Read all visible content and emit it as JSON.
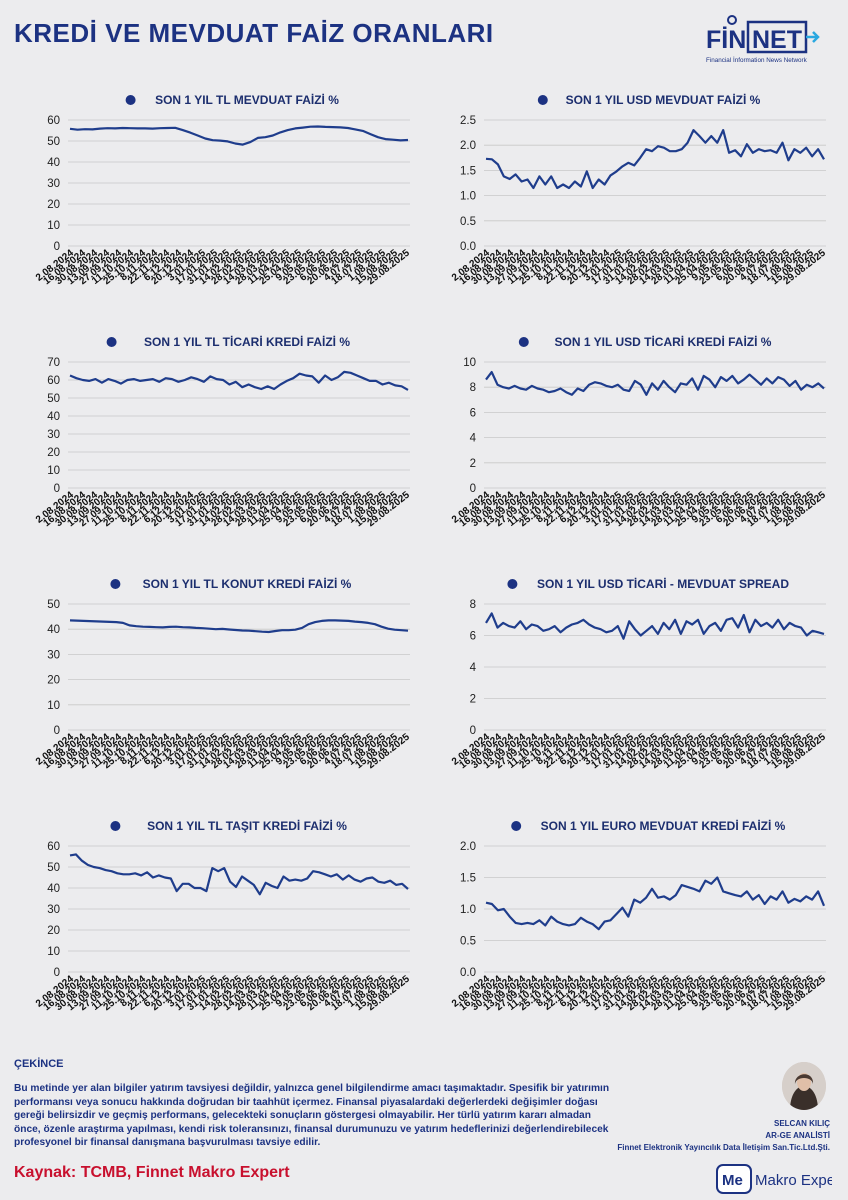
{
  "page": {
    "title": "KREDİ VE MEVDUAT FAİZ ORANLARI"
  },
  "logo": {
    "name": "FİNNET",
    "fin": "FİN",
    "net": "NET",
    "tagline": "Financial İnformation News Network"
  },
  "disclaimer": {
    "title": "ÇEKİNCE",
    "body": "Bu metinde yer alan bilgiler yatırım tavsiyesi değildir, yalnızca genel bilgilendirme amacı taşımaktadır. Spesifik bir yatırımın performansı veya sonucu hakkında doğrudan bir taahhüt içermez. Finansal piyasalardaki değerlerdeki değişimler doğası gereği belirsizdir ve geçmiş performans, gelecekteki sonuçların göstergesi olmayabilir. Her türlü yatırım kararı almadan önce, özenle araştırma yapılması, kendi risk toleransınızı, finansal durumunuzu ve yatırım hedeflerinizi değerlendirebilecek profesyonel bir finansal danışmana başvurulması tavsiye edilir."
  },
  "source": "Kaynak: TCMB, Finnet Makro Expert",
  "author": {
    "name": "SELCAN KILIÇ",
    "role": "AR-GE ANALİSTİ",
    "company": "Finnet Elektronik Yayıncılık Data İletişim San.Tic.Ltd.Şti."
  },
  "brand": {
    "me": "Me",
    "name": "Makro Expert"
  },
  "colors": {
    "navy": "#1c3282",
    "line": "#1f3d8c",
    "red": "#c8102e",
    "grid": "#c8c8c8"
  },
  "x_labels": [
    "2.08.2024",
    "16.08.2024",
    "30.08.2024",
    "13.09.2024",
    "27.09.2024",
    "11.10.2024",
    "25.10.2024",
    "8.11.2024",
    "22.11.2024",
    "6.12.2024",
    "20.12.2024",
    "3.01.2025",
    "17.01.2025",
    "31.01.2025",
    "14.02.2025",
    "28.02.2025",
    "14.03.2025",
    "28.03.2025",
    "11.04.2025",
    "25.04.2025",
    "9.05.2025",
    "23.05.2025",
    "6.06.2025",
    "20.06.2025",
    "4.07.2025",
    "18.07.2025",
    "1.08.2025",
    "15.08.2025",
    "29.08.2025"
  ],
  "chart_data": [
    {
      "type": "line",
      "title": "SON 1 YIL TL MEVDUAT FAİZİ %",
      "ylim": [
        0,
        60
      ],
      "yticks": [
        "0",
        "10",
        "20",
        "30",
        "40",
        "50",
        "60"
      ],
      "values": [
        55.8,
        55.4,
        55.6,
        55.5,
        55.9,
        56.1,
        56.0,
        56.2,
        56.1,
        56.0,
        56.0,
        55.9,
        56.1,
        56.2,
        56.3,
        55.2,
        54.0,
        52.6,
        51.2,
        50.4,
        50.2,
        49.8,
        48.8,
        48.3,
        49.5,
        51.5,
        51.8,
        52.6,
        54.1,
        55.2,
        56.0,
        56.4,
        56.8,
        56.9,
        56.7,
        56.6,
        56.5,
        56.2,
        55.5,
        54.8,
        53.3,
        51.8,
        50.9,
        50.6,
        50.3,
        50.5
      ]
    },
    {
      "type": "line",
      "title": "SON 1 YIL USD MEVDUAT FAİZİ %",
      "ylim": [
        0,
        2.5
      ],
      "yticks": [
        "0.0",
        "0.5",
        "1.0",
        "1.5",
        "2.0",
        "2.5"
      ],
      "values": [
        1.73,
        1.72,
        1.62,
        1.38,
        1.33,
        1.42,
        1.28,
        1.32,
        1.15,
        1.38,
        1.22,
        1.38,
        1.15,
        1.22,
        1.15,
        1.28,
        1.18,
        1.48,
        1.15,
        1.32,
        1.22,
        1.4,
        1.48,
        1.58,
        1.65,
        1.6,
        1.75,
        1.92,
        1.88,
        1.98,
        1.95,
        1.88,
        1.88,
        1.92,
        2.05,
        2.3,
        2.18,
        2.05,
        2.18,
        2.05,
        2.3,
        1.85,
        1.9,
        1.78,
        2.02,
        1.85,
        1.92,
        1.88,
        1.9,
        1.85,
        2.05,
        1.7,
        1.92,
        1.85,
        1.95,
        1.78,
        1.92,
        1.72
      ]
    },
    {
      "type": "line",
      "title": "SON 1 YIL TL TİCARİ KREDİ FAİZİ %",
      "ylim": [
        0,
        70
      ],
      "yticks": [
        "0",
        "10",
        "20",
        "30",
        "40",
        "50",
        "60",
        "70"
      ],
      "values": [
        62.5,
        61.0,
        60.0,
        59.5,
        60.5,
        58.5,
        60.5,
        59.5,
        58.0,
        60.0,
        60.5,
        59.5,
        60.0,
        60.5,
        59.0,
        61.0,
        60.5,
        59.0,
        60.0,
        61.5,
        60.5,
        59.0,
        62.0,
        60.5,
        60.0,
        57.5,
        59.0,
        56.0,
        57.5,
        56.0,
        55.0,
        56.5,
        55.0,
        57.5,
        59.5,
        61.0,
        63.5,
        62.5,
        62.0,
        58.5,
        62.5,
        60.0,
        61.5,
        64.5,
        64.0,
        62.5,
        61.0,
        59.5,
        59.5,
        57.5,
        58.5,
        57.0,
        56.5,
        54.5
      ]
    },
    {
      "type": "line",
      "title": "SON 1 YIL USD TİCARİ KREDİ FAİZİ %",
      "ylim": [
        0,
        10
      ],
      "yticks": [
        "0",
        "2",
        "4",
        "6",
        "8",
        "10"
      ],
      "values": [
        8.6,
        9.2,
        8.2,
        8.0,
        7.9,
        8.1,
        7.9,
        7.8,
        8.1,
        7.9,
        7.8,
        7.6,
        7.7,
        7.9,
        7.6,
        7.4,
        7.9,
        7.7,
        8.2,
        8.4,
        8.3,
        8.1,
        8.0,
        8.2,
        7.8,
        7.7,
        8.5,
        8.2,
        7.4,
        8.3,
        7.8,
        8.5,
        8.0,
        7.6,
        8.3,
        8.2,
        8.7,
        7.8,
        8.9,
        8.6,
        8.0,
        8.8,
        8.5,
        8.9,
        8.3,
        8.6,
        9.0,
        8.6,
        8.2,
        8.7,
        8.3,
        8.8,
        8.6,
        8.1,
        8.5,
        7.8,
        8.2,
        8.0,
        8.3,
        7.9
      ]
    },
    {
      "type": "line",
      "title": "SON 1 YIL TL KONUT KREDİ FAİZİ %",
      "ylim": [
        0,
        50
      ],
      "yticks": [
        "0",
        "10",
        "20",
        "30",
        "40",
        "50"
      ],
      "values": [
        43.5,
        43.4,
        43.3,
        43.2,
        43.1,
        43.0,
        42.9,
        42.8,
        42.5,
        41.5,
        41.2,
        41.0,
        40.9,
        40.8,
        40.7,
        40.9,
        41.0,
        40.8,
        40.7,
        40.5,
        40.4,
        40.2,
        40.0,
        40.1,
        39.9,
        39.7,
        39.5,
        39.4,
        39.2,
        39.0,
        38.9,
        39.3,
        39.6,
        39.6,
        39.8,
        40.5,
        42.0,
        42.8,
        43.3,
        43.5,
        43.5,
        43.4,
        43.3,
        43.0,
        42.8,
        42.5,
        42.0,
        41.0,
        40.2,
        39.8,
        39.6,
        39.4
      ]
    },
    {
      "type": "line",
      "title": "SON 1 YIL USD TİCARİ - MEVDUAT SPREAD",
      "ylim": [
        0,
        8
      ],
      "yticks": [
        "0",
        "2",
        "4",
        "6",
        "8"
      ],
      "values": [
        6.8,
        7.4,
        6.5,
        6.8,
        6.6,
        6.5,
        6.9,
        6.4,
        6.7,
        6.6,
        6.3,
        6.4,
        6.6,
        6.2,
        6.5,
        6.7,
        6.8,
        7.0,
        6.7,
        6.5,
        6.4,
        6.2,
        6.3,
        6.6,
        5.8,
        6.9,
        6.4,
        6.0,
        6.3,
        6.6,
        6.1,
        6.8,
        6.4,
        7.0,
        6.1,
        6.9,
        6.7,
        7.0,
        6.1,
        6.6,
        6.8,
        6.3,
        7.0,
        7.1,
        6.5,
        7.3,
        6.2,
        7.0,
        6.6,
        6.8,
        6.5,
        7.0,
        6.4,
        6.8,
        6.6,
        6.5,
        6.0,
        6.3,
        6.2,
        6.1
      ]
    },
    {
      "type": "line",
      "title": "SON 1 YIL TL TAŞIT KREDİ FAİZİ %",
      "ylim": [
        0,
        60
      ],
      "yticks": [
        "0",
        "10",
        "20",
        "30",
        "40",
        "50",
        "60"
      ],
      "values": [
        55.5,
        56.0,
        53.0,
        51.0,
        50.0,
        49.5,
        48.5,
        48.0,
        47.0,
        46.5,
        46.5,
        47.0,
        46.0,
        47.5,
        45.0,
        46.0,
        45.0,
        44.5,
        38.5,
        42.0,
        42.0,
        40.0,
        40.0,
        38.5,
        49.5,
        48.0,
        49.5,
        43.0,
        40.5,
        45.5,
        43.5,
        41.5,
        37.0,
        42.5,
        41.0,
        40.0,
        45.5,
        43.5,
        44.0,
        43.5,
        44.5,
        48.0,
        47.5,
        46.5,
        45.5,
        46.5,
        44.0,
        46.0,
        44.0,
        43.0,
        44.5,
        45.0,
        43.0,
        42.5,
        43.5,
        41.5,
        42.0,
        39.5
      ]
    },
    {
      "type": "line",
      "title": "SON 1 YIL EURO MEVDUAT KREDİ FAİZİ %",
      "ylim": [
        0,
        2
      ],
      "yticks": [
        "0.0",
        "0.5",
        "1.0",
        "1.5",
        "2.0"
      ],
      "values": [
        1.1,
        1.08,
        0.98,
        1.0,
        0.88,
        0.78,
        0.76,
        0.78,
        0.76,
        0.82,
        0.74,
        0.88,
        0.8,
        0.76,
        0.74,
        0.76,
        0.86,
        0.8,
        0.76,
        0.68,
        0.8,
        0.82,
        0.92,
        1.02,
        0.88,
        1.15,
        1.1,
        1.18,
        1.32,
        1.18,
        1.2,
        1.15,
        1.22,
        1.38,
        1.35,
        1.32,
        1.28,
        1.45,
        1.4,
        1.5,
        1.28,
        1.25,
        1.22,
        1.2,
        1.28,
        1.15,
        1.22,
        1.08,
        1.2,
        1.15,
        1.28,
        1.1,
        1.16,
        1.12,
        1.2,
        1.15,
        1.28,
        1.05
      ]
    }
  ]
}
